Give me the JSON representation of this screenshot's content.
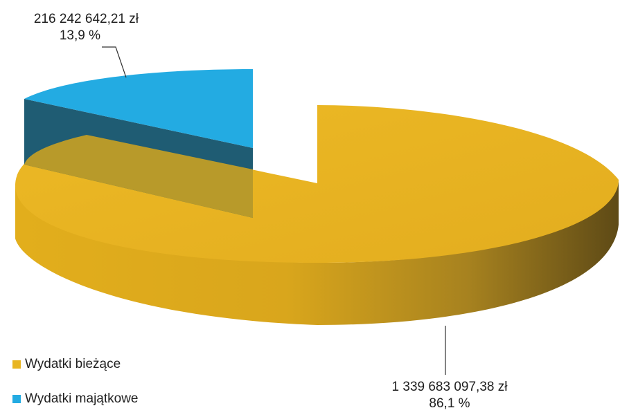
{
  "chart_data": {
    "type": "pie",
    "three_d": true,
    "title": "",
    "categories": [
      "Wydatki bieżące",
      "Wydatki majątkowe"
    ],
    "values": [
      1339683097.38,
      216242642.21
    ],
    "percentages": [
      86.1,
      13.9
    ],
    "colors": [
      "#e8b521",
      "#23abe2"
    ],
    "exploded_slice": "Wydatki majątkowe",
    "legend_position": "bottom-left",
    "data_labels": [
      {
        "value_text": "1 339 683 097,38 zł",
        "percent_text": "86,1 %"
      },
      {
        "value_text": "216 242 642,21 zł",
        "percent_text": "13,9 %"
      }
    ]
  }
}
